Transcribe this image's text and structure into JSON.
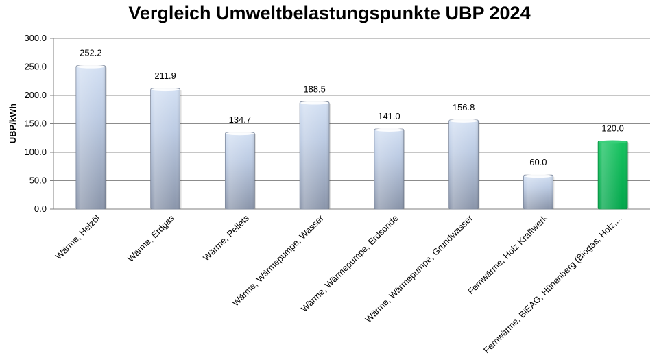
{
  "chart_data": {
    "type": "bar",
    "title": "Vergleich Umweltbelastungspunkte UBP 2024",
    "xlabel": "",
    "ylabel": "UBP/kWh",
    "ylim": [
      0,
      300
    ],
    "yticks": [
      "0.0",
      "50.0",
      "100.0",
      "150.0",
      "200.0",
      "250.0",
      "300.0"
    ],
    "grid": true,
    "legend": "none",
    "categories": [
      "Wärme, Heizöl",
      "Wärme, Erdgas",
      "Wärme, Pellets",
      "Wärme, Wärmepumpe, Wasser",
      "Wärme, Wärmepumpe, Erdsonde",
      "Wärme, Wärmepumpe, Grundwasser",
      "Fernwärme, Holz Kraftwerk",
      "Fernwärme, BiEAG, Hünenberg (Biogas, Holz,..."
    ],
    "values": [
      252.2,
      211.9,
      134.7,
      188.5,
      141.0,
      156.8,
      60.0,
      120.0
    ],
    "data_labels": [
      "252.2",
      "211.9",
      "134.7",
      "188.5",
      "141.0",
      "156.8",
      "60.0",
      "120.0"
    ],
    "colors": {
      "bar_default_top": "#c9d8ef",
      "bar_default_bottom": "#8b96ab",
      "bar_highlight": "#00b050",
      "gridline": "#8c8c8c",
      "axis": "#7f7f7f"
    },
    "highlight_index": 7
  }
}
